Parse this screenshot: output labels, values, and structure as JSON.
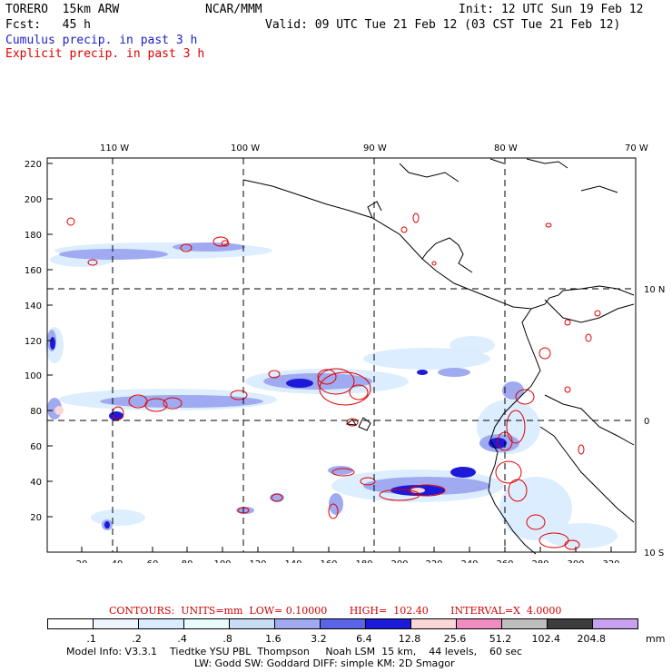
{
  "header": {
    "model": "TORERO  15km ARW",
    "org": "NCAR/MMM",
    "init": "Init: 12 UTC Sun 19 Feb 12",
    "fcst": "Fcst:   45 h",
    "valid": "Valid: 09 UTC Tue 21 Feb 12 (03 CST Tue 21 Feb 12)",
    "legend_cumulus": "Cumulus precip. in past 3 h",
    "legend_explicit": "Explicit precip. in past 3 h"
  },
  "map": {
    "top_lon_labels": [
      "110 W",
      "100 W",
      "90 W",
      "80 W",
      "70 W"
    ],
    "right_lat_labels": [
      "10 N",
      "0",
      "10 S"
    ],
    "y_ticks": [
      "20",
      "40",
      "60",
      "80",
      "100",
      "120",
      "140",
      "160",
      "180",
      "200",
      "220"
    ],
    "x_ticks": [
      "20",
      "40",
      "60",
      "80",
      "100",
      "120",
      "140",
      "160",
      "180",
      "200",
      "220",
      "240",
      "260",
      "280",
      "300",
      "320"
    ]
  },
  "colorbar": {
    "contours_text": "CONTOURS:  UNITS=mm  LOW= 0.10000       HIGH=  102.40       INTERVAL=X  4.0000",
    "labels": [
      ".1",
      ".2",
      ".4",
      ".8",
      "1.6",
      "3.2",
      "6.4",
      "12.8",
      "25.6",
      "51.2",
      "102.4",
      "204.8"
    ],
    "unit": "mm",
    "colors": [
      "#ffffff",
      "#eef4fb",
      "#d9ecff",
      "#e8fcfc",
      "#c8dcf6",
      "#a0aaf0",
      "#5a64e6",
      "#1a1ad8",
      "#fad6d6",
      "#f08cc0",
      "#bebebe",
      "#3c3c3c",
      "#c8a0f0"
    ]
  },
  "footer": {
    "line1": "Model Info: V3.3.1    Tiedtke YSU PBL  Thompson     Noah LSM  15 km,    44 levels,    60 sec",
    "line2": "LW: Godd SW: Goddard DIFF: simple KM: 2D Smagor"
  }
}
